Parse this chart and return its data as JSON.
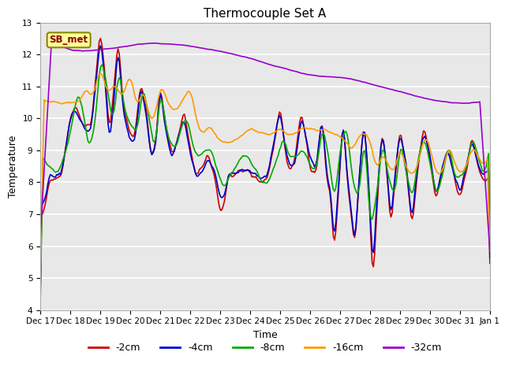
{
  "title": "Thermocouple Set A",
  "xlabel": "Time",
  "ylabel": "Temperature",
  "ylim": [
    4.0,
    13.0
  ],
  "yticks": [
    4.0,
    5.0,
    6.0,
    7.0,
    8.0,
    9.0,
    10.0,
    11.0,
    12.0,
    13.0
  ],
  "xtick_labels": [
    "Dec 17",
    "Dec 18",
    "Dec 19",
    "Dec 20",
    "Dec 21",
    "Dec 22",
    "Dec 23",
    "Dec 24",
    "Dec 25",
    "Dec 26",
    "Dec 27",
    "Dec 28",
    "Dec 29",
    "Dec 30",
    "Dec 31",
    "Jan 1"
  ],
  "line_colors": [
    "#cc0000",
    "#0000cc",
    "#00aa00",
    "#ff9900",
    "#9900cc"
  ],
  "line_labels": [
    "-2cm",
    "-4cm",
    "-8cm",
    "-16cm",
    "-32cm"
  ],
  "line_widths": [
    1.2,
    1.2,
    1.2,
    1.2,
    1.2
  ],
  "annotation_text": "SB_met",
  "bg_color": "#e8e8e8",
  "grid_color": "#ffffff",
  "title_fontsize": 11
}
